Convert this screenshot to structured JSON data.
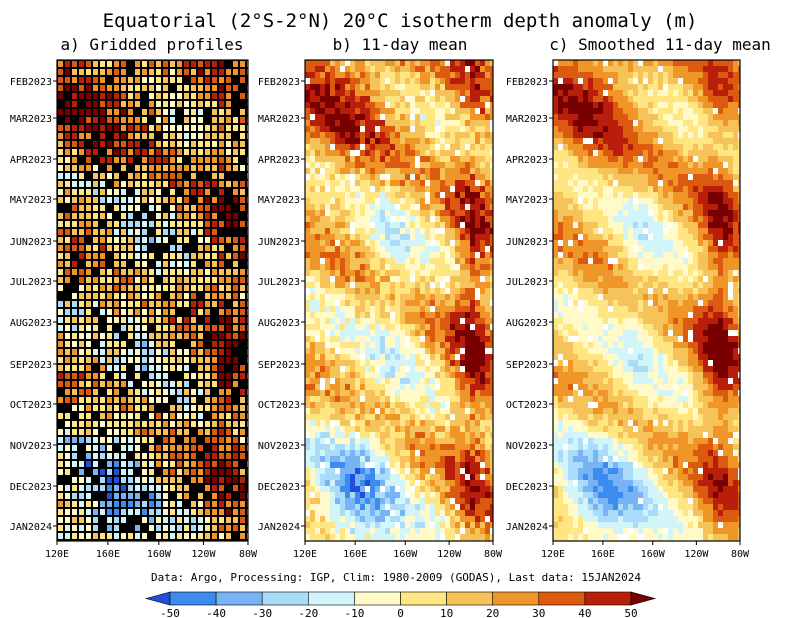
{
  "title": "Equatorial (2°S-2°N) 20°C isotherm depth anomaly (m)",
  "footer": "Data: Argo, Processing: IGP, Clim: 1980-2009 (GODAS), Last data: 15JAN2024",
  "colors": {
    "below": "#1e50dc",
    "bins": [
      "#1e6ee6",
      "#3c8cf0",
      "#78b4f5",
      "#aadcfa",
      "#d2f5fa",
      "#fffac8",
      "#ffe682",
      "#f5c35a",
      "#f09628",
      "#dc5a0f",
      "#b91e0a",
      "#7d0a05"
    ],
    "above": "#780000"
  },
  "chart_data": [
    {
      "type": "heatmap",
      "title": "a) Gridded profiles",
      "x_ticks": [
        "120E",
        "160E",
        "160W",
        "120W",
        "80W"
      ],
      "y_ticks": [
        "FEB2023",
        "MAR2023",
        "APR2023",
        "MAY2023",
        "JUN2023",
        "JUL2023",
        "AUG2023",
        "SEP2023",
        "OCT2023",
        "NOV2023",
        "DEC2023",
        "JAN2024"
      ]
    },
    {
      "type": "heatmap",
      "title": "b) 11-day mean",
      "x_ticks": [
        "120E",
        "160E",
        "160W",
        "120W",
        "80W"
      ],
      "y_ticks": [
        "FEB2023",
        "MAR2023",
        "APR2023",
        "MAY2023",
        "JUN2023",
        "JUL2023",
        "AUG2023",
        "SEP2023",
        "OCT2023",
        "NOV2023",
        "DEC2023",
        "JAN2024"
      ]
    },
    {
      "type": "heatmap",
      "title": "c) Smoothed 11-day mean",
      "x_ticks": [
        "120E",
        "160E",
        "160W",
        "120W",
        "80W"
      ],
      "y_ticks": [
        "FEB2023",
        "MAR2023",
        "APR2023",
        "MAY2023",
        "JUN2023",
        "JUL2023",
        "AUG2023",
        "SEP2023",
        "OCT2023",
        "NOV2023",
        "DEC2023",
        "JAN2024"
      ]
    }
  ],
  "colorbar": {
    "levels": [
      -50,
      -40,
      -30,
      -20,
      -10,
      0,
      10,
      20,
      30,
      40,
      50
    ],
    "labels": [
      "-50",
      "-40",
      "-30",
      "-20",
      "-10",
      "0",
      "10",
      "20",
      "30",
      "40",
      "50"
    ]
  }
}
